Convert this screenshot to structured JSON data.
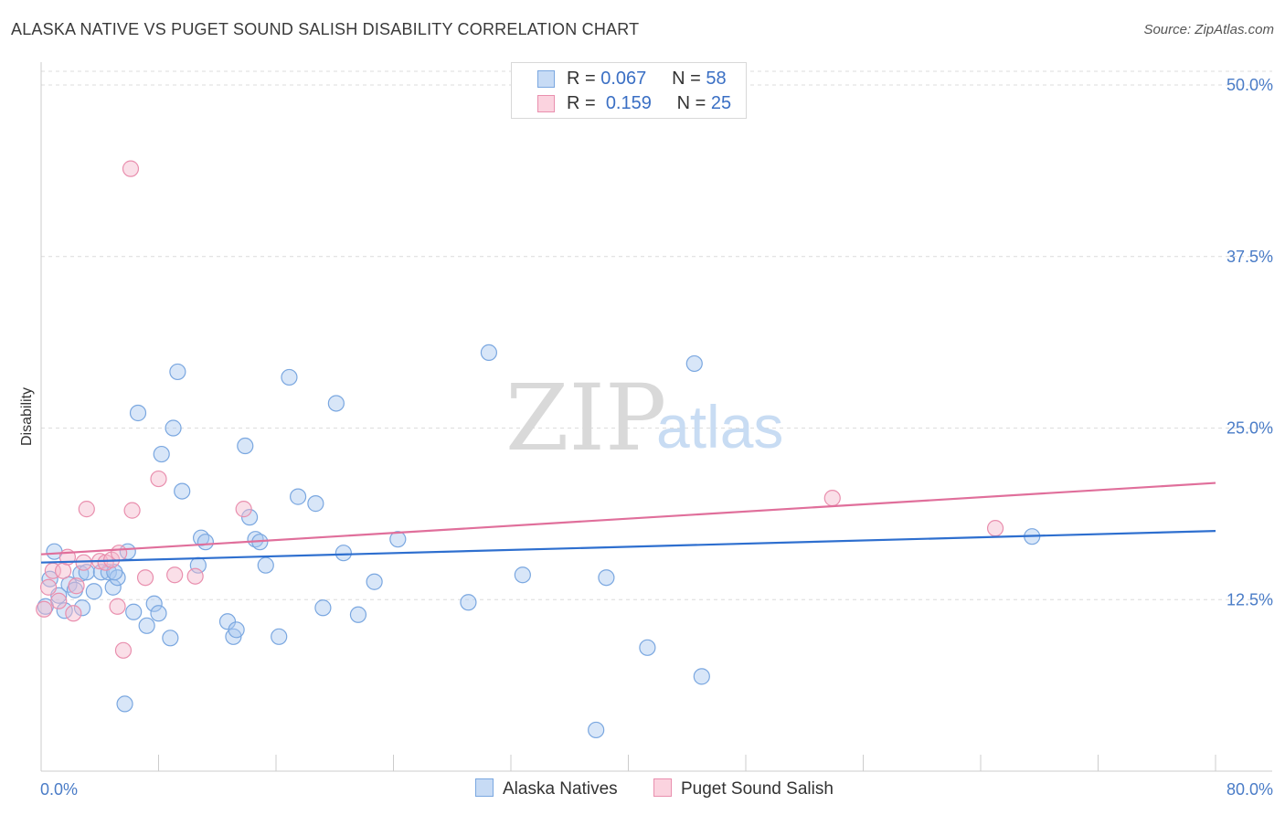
{
  "title": "ALASKA NATIVE VS PUGET SOUND SALISH DISABILITY CORRELATION CHART",
  "source": "Source: ZipAtlas.com",
  "watermark": {
    "zip": "ZIP",
    "atlas": "atlas"
  },
  "legend": {
    "rows": [
      {
        "r_label": "R =",
        "r_value": "0.067",
        "n_label": "N =",
        "n_value": "58",
        "color": "#a9c8ef"
      },
      {
        "r_label": "R =",
        "r_value": "0.159",
        "n_label": "N =",
        "n_value": "25",
        "color": "#f5b8cb"
      }
    ]
  },
  "colors": {
    "blue_fill": "#a9c8ef",
    "blue_stroke": "#7aa7e0",
    "blue_line": "#2e6fcf",
    "pink_fill": "#f5b8cb",
    "pink_stroke": "#e98fae",
    "pink_line": "#e06f9b",
    "grid": "#dcdcdc",
    "axis_text": "#4a7cc7"
  },
  "chart_data": {
    "type": "scatter",
    "title": "ALASKA NATIVE VS PUGET SOUND SALISH DISABILITY CORRELATION CHART",
    "xlabel": "",
    "ylabel": "Disability",
    "xlim": [
      0,
      80
    ],
    "ylim": [
      0,
      51
    ],
    "x_tick_labels": [
      "0.0%",
      "80.0%"
    ],
    "y_ticks": [
      12.5,
      25.0,
      37.5,
      50.0
    ],
    "y_tick_labels": [
      "12.5%",
      "25.0%",
      "37.5%",
      "50.0%"
    ],
    "grid": "horizontal dashed",
    "legend_placement": "bottom-center",
    "series": [
      {
        "name": "Alaska Natives",
        "r": 0.067,
        "n": 58,
        "trend": {
          "x": [
            0,
            80
          ],
          "y": [
            15.2,
            17.5
          ]
        },
        "points": [
          {
            "x": 0.6,
            "y": 14.0
          },
          {
            "x": 0.9,
            "y": 16.0
          },
          {
            "x": 1.2,
            "y": 12.8
          },
          {
            "x": 1.6,
            "y": 11.7
          },
          {
            "x": 1.9,
            "y": 13.6
          },
          {
            "x": 2.3,
            "y": 13.2
          },
          {
            "x": 2.7,
            "y": 14.4
          },
          {
            "x": 2.8,
            "y": 11.9
          },
          {
            "x": 3.1,
            "y": 14.5
          },
          {
            "x": 3.6,
            "y": 13.1
          },
          {
            "x": 4.1,
            "y": 14.5
          },
          {
            "x": 4.6,
            "y": 14.5
          },
          {
            "x": 4.9,
            "y": 13.4
          },
          {
            "x": 5.2,
            "y": 14.1
          },
          {
            "x": 5.7,
            "y": 4.9
          },
          {
            "x": 5.9,
            "y": 16.0
          },
          {
            "x": 6.3,
            "y": 11.6
          },
          {
            "x": 6.6,
            "y": 26.1
          },
          {
            "x": 7.2,
            "y": 10.6
          },
          {
            "x": 7.7,
            "y": 12.2
          },
          {
            "x": 8.0,
            "y": 11.5
          },
          {
            "x": 8.2,
            "y": 23.1
          },
          {
            "x": 8.8,
            "y": 9.7
          },
          {
            "x": 9.0,
            "y": 25.0
          },
          {
            "x": 9.3,
            "y": 29.1
          },
          {
            "x": 9.6,
            "y": 20.4
          },
          {
            "x": 10.7,
            "y": 15.0
          },
          {
            "x": 10.9,
            "y": 17.0
          },
          {
            "x": 11.2,
            "y": 16.7
          },
          {
            "x": 12.7,
            "y": 10.9
          },
          {
            "x": 13.1,
            "y": 9.8
          },
          {
            "x": 13.3,
            "y": 10.3
          },
          {
            "x": 13.9,
            "y": 23.7
          },
          {
            "x": 14.2,
            "y": 18.5
          },
          {
            "x": 14.6,
            "y": 16.9
          },
          {
            "x": 14.9,
            "y": 16.7
          },
          {
            "x": 15.3,
            "y": 15.0
          },
          {
            "x": 16.2,
            "y": 9.8
          },
          {
            "x": 16.9,
            "y": 28.7
          },
          {
            "x": 17.5,
            "y": 20.0
          },
          {
            "x": 18.7,
            "y": 19.5
          },
          {
            "x": 19.2,
            "y": 11.9
          },
          {
            "x": 20.1,
            "y": 26.8
          },
          {
            "x": 20.6,
            "y": 15.9
          },
          {
            "x": 21.6,
            "y": 11.4
          },
          {
            "x": 22.7,
            "y": 13.8
          },
          {
            "x": 24.3,
            "y": 16.9
          },
          {
            "x": 29.1,
            "y": 12.3
          },
          {
            "x": 30.5,
            "y": 30.5
          },
          {
            "x": 32.8,
            "y": 14.3
          },
          {
            "x": 37.8,
            "y": 3.0
          },
          {
            "x": 38.5,
            "y": 14.1
          },
          {
            "x": 41.3,
            "y": 9.0
          },
          {
            "x": 44.5,
            "y": 29.7
          },
          {
            "x": 45.0,
            "y": 6.9
          },
          {
            "x": 67.5,
            "y": 17.1
          },
          {
            "x": 0.3,
            "y": 12.0
          },
          {
            "x": 5.0,
            "y": 14.5
          }
        ]
      },
      {
        "name": "Puget Sound Salish",
        "r": 0.159,
        "n": 25,
        "trend": {
          "x": [
            0,
            80
          ],
          "y": [
            15.8,
            21.0
          ]
        },
        "points": [
          {
            "x": 0.2,
            "y": 11.8
          },
          {
            "x": 0.5,
            "y": 13.4
          },
          {
            "x": 0.8,
            "y": 14.6
          },
          {
            "x": 1.2,
            "y": 12.4
          },
          {
            "x": 1.5,
            "y": 14.6
          },
          {
            "x": 1.8,
            "y": 15.6
          },
          {
            "x": 2.2,
            "y": 11.5
          },
          {
            "x": 2.4,
            "y": 13.5
          },
          {
            "x": 2.9,
            "y": 15.2
          },
          {
            "x": 3.1,
            "y": 19.1
          },
          {
            "x": 4.0,
            "y": 15.3
          },
          {
            "x": 4.4,
            "y": 15.2
          },
          {
            "x": 4.8,
            "y": 15.4
          },
          {
            "x": 5.2,
            "y": 12.0
          },
          {
            "x": 5.3,
            "y": 15.9
          },
          {
            "x": 5.6,
            "y": 8.8
          },
          {
            "x": 6.2,
            "y": 19.0
          },
          {
            "x": 7.1,
            "y": 14.1
          },
          {
            "x": 8.0,
            "y": 21.3
          },
          {
            "x": 9.1,
            "y": 14.3
          },
          {
            "x": 10.5,
            "y": 14.2
          },
          {
            "x": 13.8,
            "y": 19.1
          },
          {
            "x": 6.1,
            "y": 43.9
          },
          {
            "x": 53.9,
            "y": 19.9
          },
          {
            "x": 65.0,
            "y": 17.7
          }
        ]
      }
    ]
  }
}
